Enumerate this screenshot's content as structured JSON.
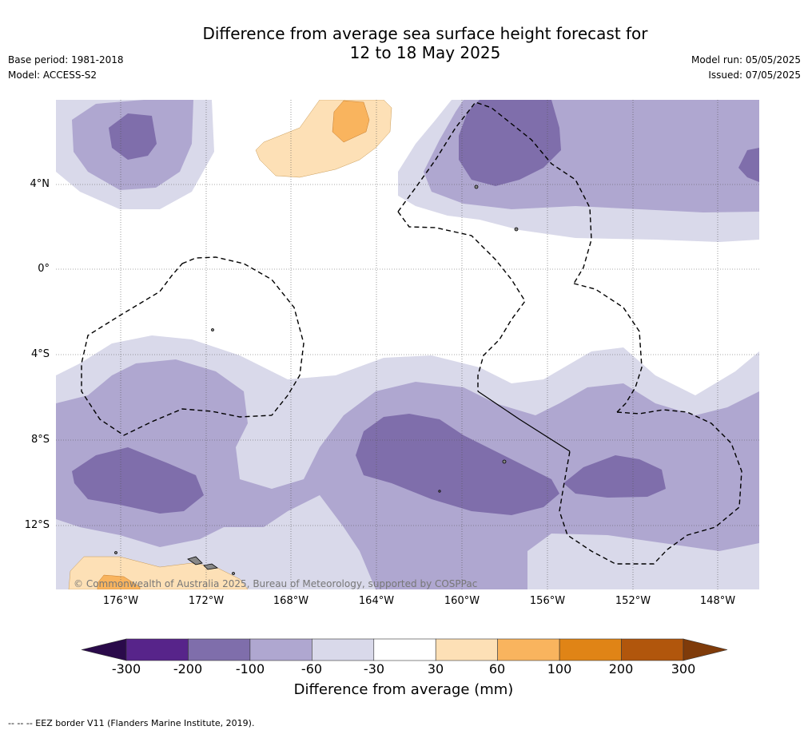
{
  "title_line1": "Difference from average sea surface height forecast for",
  "title_line2": "12 to 18 May 2025",
  "base_period": "Base period: 1981-2018",
  "model": "Model: ACCESS-S2",
  "model_run": "Model run: 05/05/2025",
  "issued": "Issued: 07/05/2025",
  "lat_ticks": [
    "4°N",
    "0°",
    "4°S",
    "8°S",
    "12°S"
  ],
  "lon_ticks": [
    "176°W",
    "172°W",
    "168°W",
    "164°W",
    "160°W",
    "156°W",
    "152°W",
    "148°W"
  ],
  "copyright": "© Commonwealth of Australia 2025, Bureau of Meteorology, supported by COSPPac",
  "colorbar": {
    "ticks": [
      "-300",
      "-200",
      "-100",
      "-60",
      "-30",
      "30",
      "60",
      "100",
      "200",
      "300"
    ],
    "label": "Difference from average (mm)",
    "colors": [
      "#2a0a4a",
      "#57248a",
      "#7f6eab",
      "#afa7d0",
      "#d9d9ea",
      "#ffffff",
      "#fde0b6",
      "#f9b45e",
      "#e08416",
      "#b1560c",
      "#7f3b0a"
    ]
  },
  "footnote": "--  --  -- EEZ border V11 (Flanders Marine Institute, 2019).",
  "map_colors": {
    "land": "#888888",
    "grid": "#555555",
    "border": "#000000"
  }
}
